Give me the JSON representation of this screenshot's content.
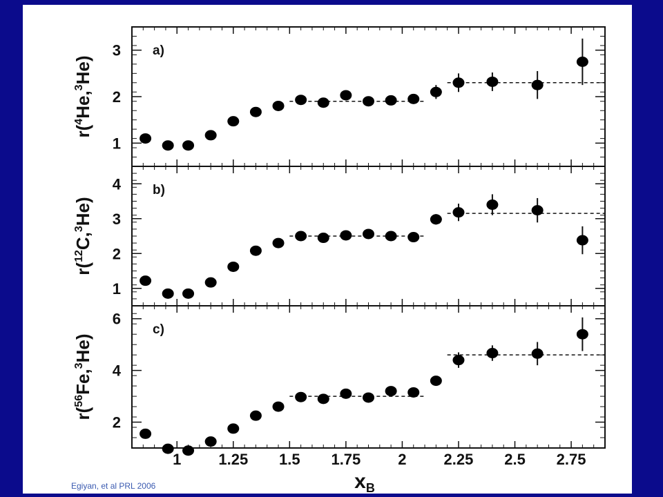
{
  "citation": "Egiyan, et al PRL 2006",
  "chart_data": [
    {
      "type": "scatter",
      "panel_label": "a)",
      "ylabel": {
        "pre": "r(",
        "sup1": "4",
        "mid": "He,",
        "sup2": "3",
        "post": "He)"
      },
      "xlim": [
        0.8,
        2.9
      ],
      "ylim": [
        0.5,
        3.5
      ],
      "yticks": [
        1,
        2,
        3
      ],
      "x": [
        0.86,
        0.96,
        1.05,
        1.15,
        1.25,
        1.35,
        1.45,
        1.55,
        1.65,
        1.75,
        1.85,
        1.95,
        2.05,
        2.15,
        2.25,
        2.4,
        2.6,
        2.8
      ],
      "y": [
        1.1,
        0.95,
        0.95,
        1.17,
        1.47,
        1.67,
        1.8,
        1.93,
        1.87,
        2.03,
        1.9,
        1.92,
        1.95,
        2.1,
        2.3,
        2.32,
        2.25,
        2.75
      ],
      "err": [
        0,
        0,
        0,
        0,
        0,
        0,
        0,
        0,
        0,
        0,
        0,
        0,
        0,
        0.15,
        0.2,
        0.2,
        0.3,
        0.5
      ],
      "fits": [
        {
          "x": [
            1.5,
            2.1
          ],
          "y": 1.9
        },
        {
          "x": [
            2.2,
            2.9
          ],
          "y": 2.3
        }
      ]
    },
    {
      "type": "scatter",
      "panel_label": "b)",
      "ylabel": {
        "pre": "r(",
        "sup1": "12",
        "mid": "C,",
        "sup2": "3",
        "post": "He)"
      },
      "xlim": [
        0.8,
        2.9
      ],
      "ylim": [
        0.5,
        4.5
      ],
      "yticks": [
        1,
        2,
        3,
        4
      ],
      "x": [
        0.86,
        0.96,
        1.05,
        1.15,
        1.25,
        1.35,
        1.45,
        1.55,
        1.65,
        1.75,
        1.85,
        1.95,
        2.05,
        2.15,
        2.25,
        2.4,
        2.6,
        2.8
      ],
      "y": [
        1.22,
        0.85,
        0.85,
        1.17,
        1.62,
        2.08,
        2.3,
        2.5,
        2.45,
        2.52,
        2.56,
        2.5,
        2.47,
        2.98,
        3.18,
        3.4,
        3.24,
        2.38
      ],
      "err": [
        0,
        0,
        0,
        0,
        0,
        0,
        0,
        0,
        0,
        0,
        0,
        0,
        0,
        0.15,
        0.25,
        0.3,
        0.35,
        0.4
      ],
      "fits": [
        {
          "x": [
            1.5,
            2.1
          ],
          "y": 2.5
        },
        {
          "x": [
            2.2,
            2.9
          ],
          "y": 3.15
        }
      ]
    },
    {
      "type": "scatter",
      "panel_label": "c)",
      "ylabel": {
        "pre": "r(",
        "sup1": "56",
        "mid": "Fe,",
        "sup2": "3",
        "post": "He)"
      },
      "xlim": [
        0.8,
        2.9
      ],
      "ylim": [
        1.0,
        6.5
      ],
      "yticks": [
        2,
        4,
        6
      ],
      "xticks": [
        1,
        1.25,
        1.5,
        1.75,
        2,
        2.25,
        2.5,
        2.75
      ],
      "xticklabels": [
        "1",
        "1.25",
        "1.5",
        "1.75",
        "2",
        "2.25",
        "2.5",
        "2.75"
      ],
      "xlabel": {
        "main": "x",
        "sub": "B"
      },
      "x": [
        0.86,
        0.96,
        1.05,
        1.15,
        1.25,
        1.35,
        1.45,
        1.55,
        1.65,
        1.75,
        1.85,
        1.95,
        2.05,
        2.15,
        2.25,
        2.4,
        2.6,
        2.8
      ],
      "y": [
        1.55,
        0.97,
        0.9,
        1.25,
        1.75,
        2.25,
        2.6,
        2.97,
        2.9,
        3.1,
        2.95,
        3.2,
        3.15,
        3.6,
        4.4,
        4.67,
        4.65,
        5.4
      ],
      "err": [
        0,
        0,
        0,
        0,
        0,
        0,
        0,
        0,
        0,
        0,
        0,
        0,
        0,
        0,
        0.3,
        0.3,
        0.45,
        0.65
      ],
      "fits": [
        {
          "x": [
            1.5,
            2.1
          ],
          "y": 3.0
        },
        {
          "x": [
            2.2,
            2.9
          ],
          "y": 4.6
        }
      ]
    }
  ]
}
